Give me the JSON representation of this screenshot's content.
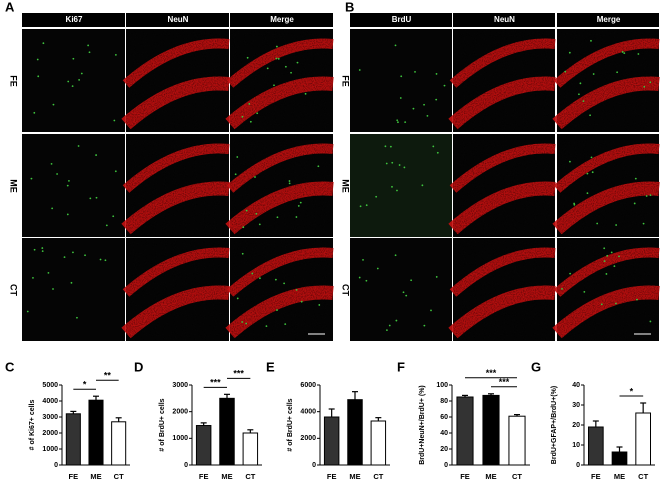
{
  "figure": {
    "panels": [
      {
        "letter": "A",
        "columns": [
          "Ki67",
          "NeuN",
          "Merge"
        ],
        "rows": [
          "FE",
          "ME",
          "CT"
        ]
      },
      {
        "letter": "B",
        "columns": [
          "BrdU",
          "NeuN",
          "Merge"
        ],
        "rows": [
          "FE",
          "ME",
          "CT"
        ]
      }
    ]
  },
  "chart_data": [
    {
      "type": "bar",
      "label": "C",
      "y_label": "# of Ki67+ cells",
      "categories": [
        "FE",
        "ME",
        "CT"
      ],
      "values": [
        3200,
        4050,
        2700
      ],
      "errors": [
        150,
        250,
        250
      ],
      "colors": [
        "#333333",
        "#000000",
        "#ffffff"
      ],
      "ylim": [
        0,
        5000
      ],
      "yticks": [
        0,
        1000,
        2000,
        3000,
        4000,
        5000
      ],
      "significance": [
        {
          "text": "*",
          "between": [
            "FE",
            "ME"
          ]
        },
        {
          "text": "**",
          "between": [
            "ME",
            "CT"
          ]
        }
      ]
    },
    {
      "type": "bar",
      "label": "D",
      "y_label": "# of BrdU+ cells",
      "categories": [
        "FE",
        "ME",
        "CT"
      ],
      "values": [
        1480,
        2500,
        1200
      ],
      "errors": [
        100,
        150,
        120
      ],
      "colors": [
        "#333333",
        "#000000",
        "#ffffff"
      ],
      "ylim": [
        0,
        3000
      ],
      "yticks": [
        0,
        1000,
        2000,
        3000
      ],
      "significance": [
        {
          "text": "***",
          "between": [
            "FE",
            "ME"
          ]
        },
        {
          "text": "***",
          "between": [
            "ME",
            "CT"
          ]
        }
      ]
    },
    {
      "type": "bar",
      "label": "E",
      "y_label": "# of BrdU+ cells",
      "categories": [
        "FE",
        "ME",
        "CT"
      ],
      "values": [
        3600,
        4900,
        3300
      ],
      "errors": [
        600,
        600,
        250
      ],
      "colors": [
        "#333333",
        "#000000",
        "#ffffff"
      ],
      "ylim": [
        0,
        6000
      ],
      "yticks": [
        0,
        2000,
        4000,
        6000
      ],
      "significance": []
    },
    {
      "type": "bar",
      "label": "F",
      "y_label": "BrdU+NeuN+/BrdU+ (%)",
      "categories": [
        "FE",
        "ME",
        "CT"
      ],
      "values": [
        85,
        87,
        61
      ],
      "errors": [
        2,
        2,
        2
      ],
      "colors": [
        "#333333",
        "#000000",
        "#ffffff"
      ],
      "ylim": [
        0,
        100
      ],
      "yticks": [
        0,
        20,
        40,
        60,
        80,
        100
      ],
      "significance": [
        {
          "text": "***",
          "between": [
            "ME",
            "CT"
          ]
        },
        {
          "text": "***",
          "between": [
            "FE",
            "CT"
          ]
        }
      ]
    },
    {
      "type": "bar",
      "label": "G",
      "y_label": "BrdU+GFAP+/BrdU+(%)",
      "categories": [
        "FE",
        "ME",
        "CT"
      ],
      "values": [
        19,
        6.5,
        26
      ],
      "errors": [
        3,
        2.5,
        5
      ],
      "colors": [
        "#333333",
        "#000000",
        "#ffffff"
      ],
      "ylim": [
        0,
        40
      ],
      "yticks": [
        0,
        10,
        20,
        30,
        40
      ],
      "significance": [
        {
          "text": "*",
          "between": [
            "ME",
            "CT"
          ]
        }
      ]
    }
  ]
}
